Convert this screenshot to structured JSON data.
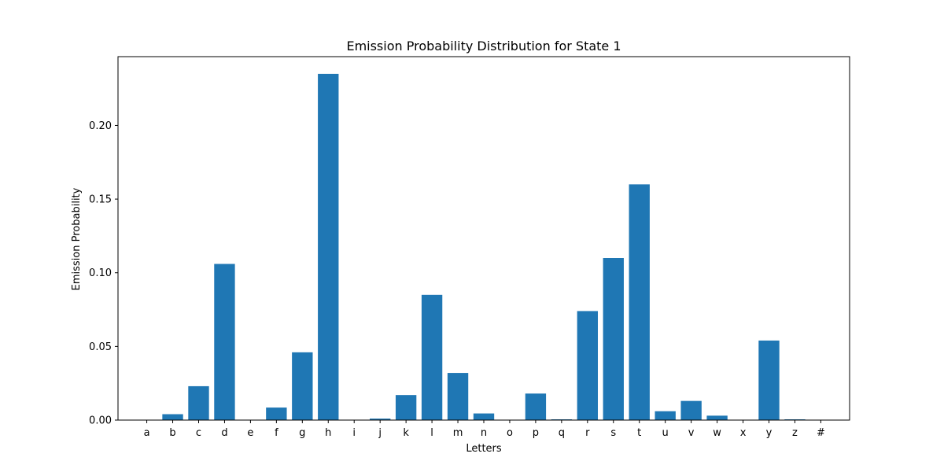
{
  "chart_data": {
    "type": "bar",
    "title": "Emission Probability Distribution for State 1",
    "xlabel": "Letters",
    "ylabel": "Emission Probability",
    "categories": [
      "a",
      "b",
      "c",
      "d",
      "e",
      "f",
      "g",
      "h",
      "i",
      "j",
      "k",
      "l",
      "m",
      "n",
      "o",
      "p",
      "q",
      "r",
      "s",
      "t",
      "u",
      "v",
      "w",
      "x",
      "y",
      "z",
      "#"
    ],
    "values": [
      0.0,
      0.004,
      0.023,
      0.106,
      0.0,
      0.0085,
      0.046,
      0.235,
      0.0,
      0.001,
      0.017,
      0.085,
      0.032,
      0.0045,
      0.0,
      0.018,
      0.0005,
      0.074,
      0.11,
      0.16,
      0.006,
      0.013,
      0.003,
      0.0,
      0.054,
      0.0005,
      0.0
    ],
    "yticks": [
      0.0,
      0.05,
      0.1,
      0.15,
      0.2
    ],
    "ytick_labels": [
      "0.00",
      "0.05",
      "0.10",
      "0.15",
      "0.20"
    ],
    "ylim": [
      0,
      0.2467
    ],
    "grid": false,
    "bar_color": "#1f77b4"
  }
}
